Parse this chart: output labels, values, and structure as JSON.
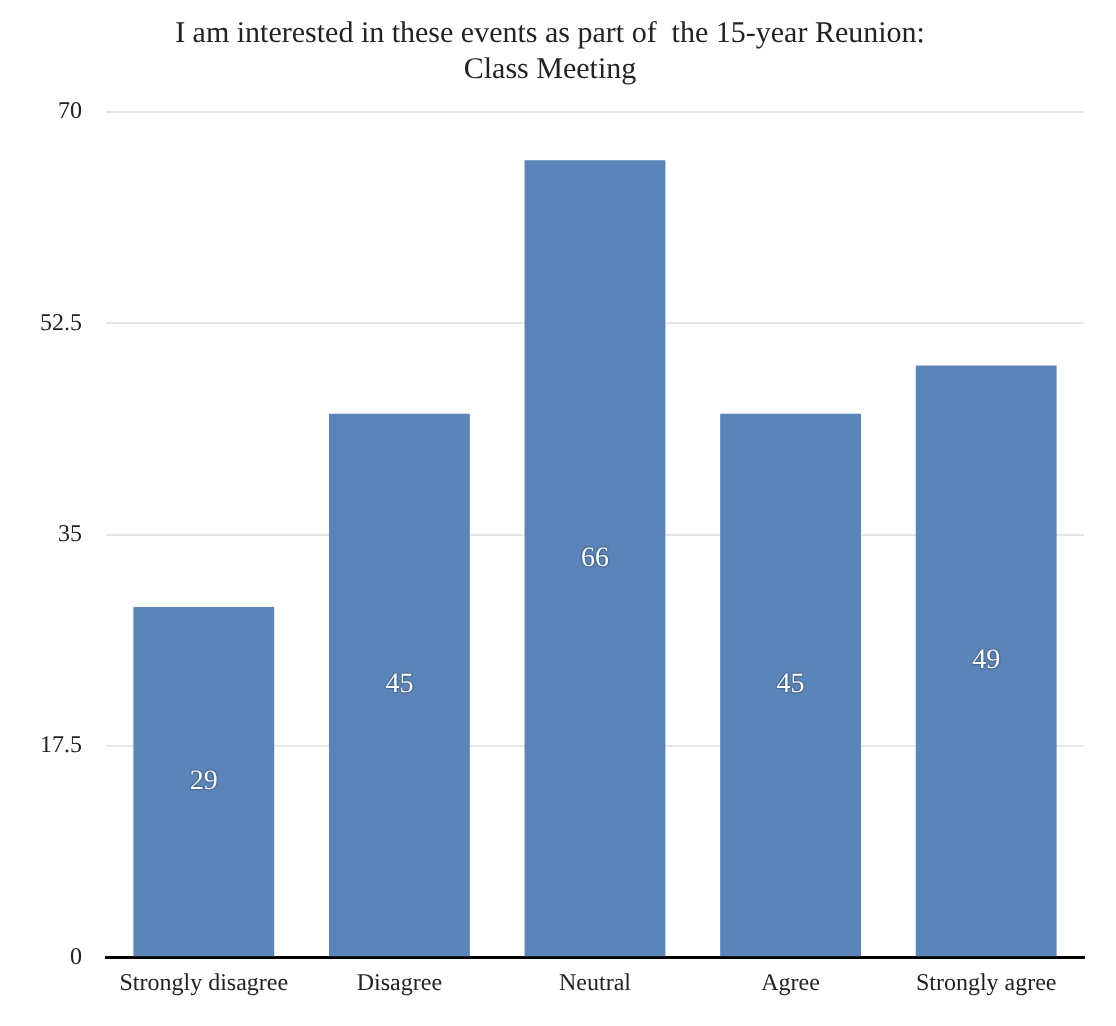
{
  "chart_data": {
    "type": "bar",
    "title": "I am interested in these events as part of  the 15-year Reunion:\nClass Meeting",
    "categories": [
      "Strongly disagree",
      "Disagree",
      "Neutral",
      "Agree",
      "Strongly agree"
    ],
    "values": [
      29,
      45,
      66,
      45,
      49
    ],
    "color": "#5b84b8",
    "ylim": [
      0,
      70
    ],
    "yticks": [
      0,
      17.5,
      35,
      52.5,
      70
    ],
    "grid": "y",
    "data_labels": true
  }
}
